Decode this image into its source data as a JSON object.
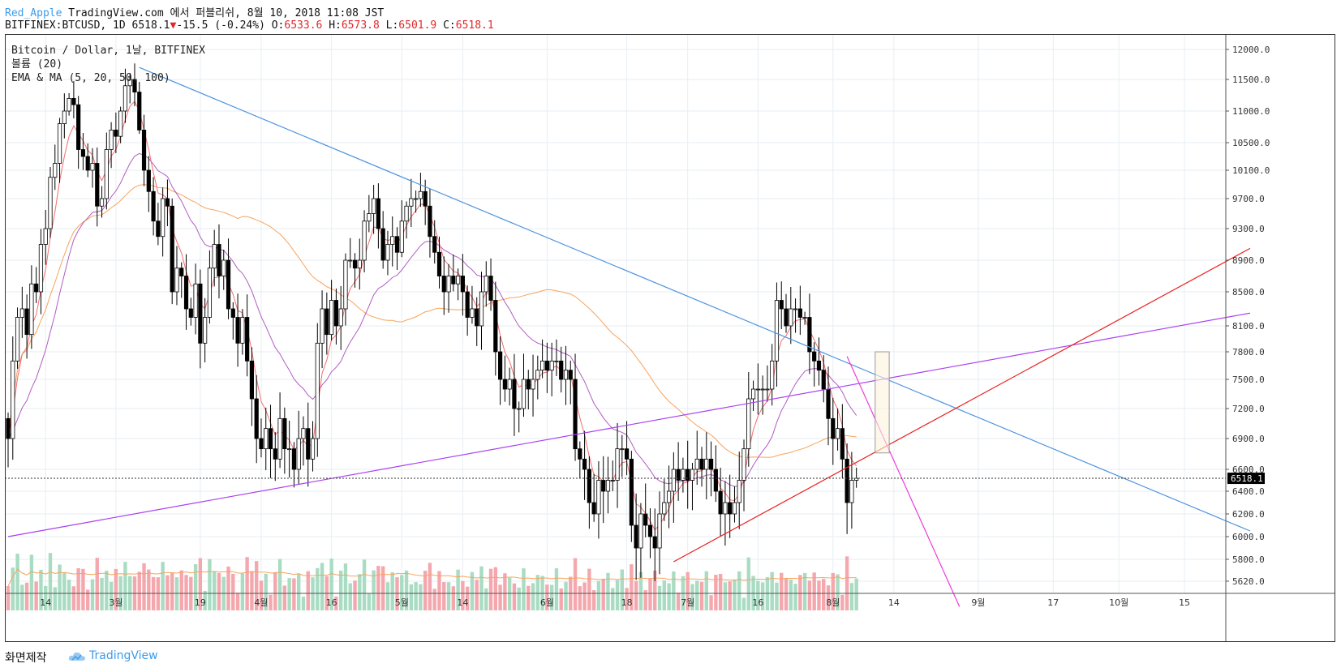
{
  "header": {
    "author": "Red_Apple",
    "publish_text": "TradingView.com 에서 퍼블리쉬, 8월 10, 2018 11:08 JST",
    "symbol": "BITFINEX:BTCUSD, 1D 6518.1",
    "change": "-15.5 (-0.24%)",
    "o_label": "O:",
    "o_value": "6533.6",
    "h_label": "H:",
    "h_value": "6573.8",
    "l_label": "L:",
    "l_value": "6501.9",
    "c_label": "C:",
    "c_value": "6518.1"
  },
  "legend": {
    "symbol_line": "Bitcoin / Dollar, 1날, BITFINEX",
    "volume_line": "볼륨 (20)",
    "ema_line": "EMA & MA (5, 20, 50, 100)"
  },
  "footer": {
    "made": "화면제작",
    "brand": "TradingView"
  },
  "colors": {
    "up_candle": "#ffffff",
    "down_candle": "#000000",
    "vol_up": "#a9dcc3",
    "vol_down": "#f4a8ae",
    "ema5": "#f56c6c",
    "ema20": "#b05ec1",
    "ma50": "#f7a35c",
    "trend_blue": "#4f93e0",
    "trend_purple": "#a93ff0",
    "trend_red": "#e82020",
    "trend_magenta": "#ee3bdc",
    "box_fill": "#fdf3dc",
    "box_stroke": "#999999"
  },
  "chart_data": {
    "type": "candlestick",
    "symbol": "BITFINEX:BTCUSD",
    "interval": "1D",
    "last_price": "6518.1",
    "y_ticks": [
      "12000.0",
      "11500.0",
      "11000.0",
      "10500.0",
      "10100.0",
      "9700.0",
      "9300.0",
      "8900.0",
      "8500.0",
      "8100.0",
      "7800.0",
      "7500.0",
      "7200.0",
      "6900.0",
      "6600.0",
      "6400.0",
      "6200.0",
      "6000.0",
      "5800.0",
      "5620.0"
    ],
    "x_labels": [
      {
        "label": "14",
        "date": "2018-02-14"
      },
      {
        "label": "3월",
        "date": "2018-03-01"
      },
      {
        "label": "19",
        "date": "2018-03-19"
      },
      {
        "label": "4월",
        "date": "2018-04-01"
      },
      {
        "label": "16",
        "date": "2018-04-16"
      },
      {
        "label": "5월",
        "date": "2018-05-01"
      },
      {
        "label": "14",
        "date": "2018-05-14"
      },
      {
        "label": "6월",
        "date": "2018-06-01"
      },
      {
        "label": "18",
        "date": "2018-06-18"
      },
      {
        "label": "7월",
        "date": "2018-07-01"
      },
      {
        "label": "16",
        "date": "2018-07-16"
      },
      {
        "label": "8월",
        "date": "2018-08-01"
      },
      {
        "label": "14",
        "date": "2018-08-14"
      },
      {
        "label": "9월",
        "date": "2018-09-01"
      },
      {
        "label": "17",
        "date": "2018-09-17"
      },
      {
        "label": "10월",
        "date": "2018-10-01"
      },
      {
        "label": "15",
        "date": "2018-10-15"
      }
    ],
    "start_date": "2018-02-06",
    "closes": [
      6900,
      7700,
      8200,
      8300,
      8000,
      8600,
      8500,
      9100,
      9300,
      10000,
      10200,
      10800,
      11000,
      11200,
      11100,
      10400,
      10300,
      10100,
      10200,
      9600,
      9700,
      10400,
      10700,
      10600,
      11000,
      11400,
      11500,
      11300,
      10700,
      10100,
      9800,
      9400,
      9200,
      9700,
      9600,
      8500,
      8800,
      8700,
      8300,
      8200,
      8600,
      7900,
      8200,
      8800,
      9100,
      8700,
      8900,
      8300,
      8200,
      7900,
      8200,
      7700,
      7300,
      6900,
      6800,
      7000,
      6800,
      6700,
      7100,
      6800,
      6800,
      6600,
      6900,
      7000,
      6700,
      6900,
      7900,
      8300,
      8000,
      8400,
      8100,
      8300,
      8900,
      8900,
      8800,
      8900,
      9400,
      9500,
      9700,
      9300,
      8900,
      9100,
      9200,
      9000,
      9400,
      9600,
      9700,
      9700,
      9800,
      9600,
      9200,
      9000,
      8700,
      8500,
      8700,
      8600,
      8700,
      8500,
      8200,
      8300,
      8100,
      8500,
      8700,
      8400,
      7800,
      7500,
      7400,
      7500,
      7200,
      7200,
      7500,
      7400,
      7500,
      7600,
      7700,
      7600,
      7700,
      7700,
      7500,
      7600,
      7500,
      6800,
      6700,
      6600,
      6300,
      6200,
      6500,
      6400,
      6500,
      6500,
      6800,
      6800,
      6700,
      6100,
      5900,
      6200,
      6100,
      6000,
      5900,
      6200,
      6300,
      6400,
      6600,
      6500,
      6600,
      6500,
      6600,
      6700,
      6600,
      6700,
      6600,
      6400,
      6200,
      6300,
      6200,
      6300,
      6500,
      6800,
      7300,
      7400,
      7400,
      7400,
      7400,
      7700,
      8400,
      8300,
      8100,
      8300,
      8300,
      8200,
      8200,
      7800,
      7700,
      7600,
      7400,
      7100,
      6900,
      7000,
      6700,
      6300,
      6500,
      6518.1
    ],
    "ema5_label": "EMA 5",
    "ema20_label": "EMA 20",
    "ma50_label": "MA 50",
    "volume_label": "볼륨 (20)"
  }
}
